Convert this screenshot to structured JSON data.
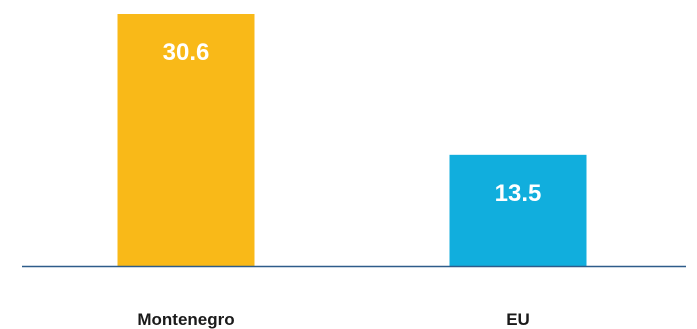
{
  "chart_data": {
    "type": "bar",
    "categories": [
      "Montenegro",
      "EU"
    ],
    "values": [
      30.6,
      13.5
    ],
    "value_labels": [
      "30.6",
      "13.5"
    ],
    "colors": [
      "#F9B918",
      "#11AEDD"
    ],
    "axis_color": "#2E5C8A",
    "ylim": [
      0,
      30.6
    ],
    "grid": false,
    "legend": "none"
  }
}
